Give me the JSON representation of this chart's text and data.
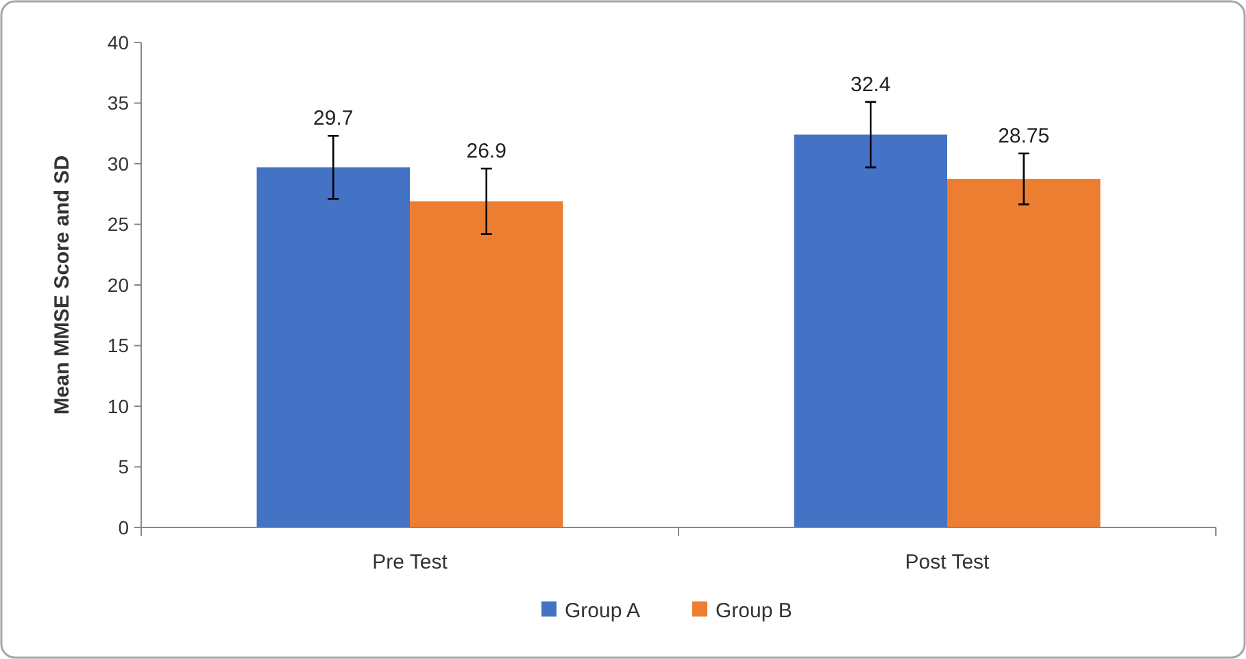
{
  "chart_data": {
    "type": "bar",
    "ylabel": "Mean MMSE Score and SD",
    "categories": [
      "Pre Test",
      "Post Test"
    ],
    "series": [
      {
        "name": "Group A",
        "color": "#4472c4",
        "values": [
          29.7,
          32.4
        ],
        "errors": [
          2.6,
          2.7
        ]
      },
      {
        "name": "Group B",
        "color": "#ed7d31",
        "values": [
          26.9,
          28.75
        ],
        "errors": [
          2.7,
          2.1
        ]
      }
    ],
    "ylim": [
      0,
      40
    ],
    "yticks": [
      0,
      5,
      10,
      15,
      20,
      25,
      30,
      35,
      40
    ],
    "data_labels": true,
    "legend": "bottom",
    "grid": false
  }
}
